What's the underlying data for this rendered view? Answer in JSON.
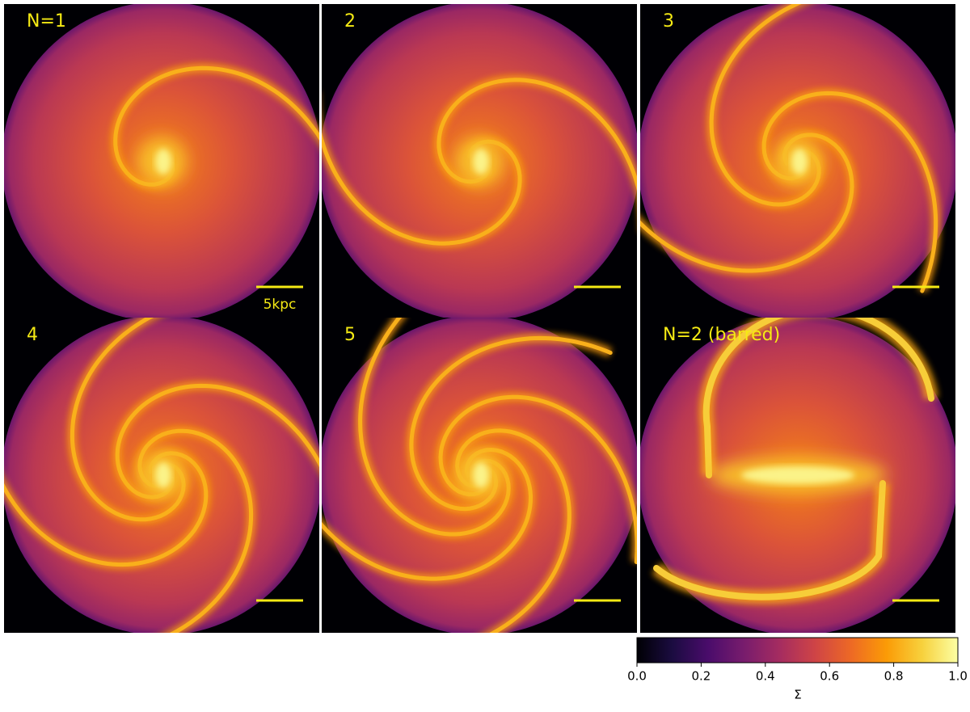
{
  "chart_data": {
    "type": "image-grid",
    "panels": [
      {
        "title": "N=1"
      },
      {
        "title": "2"
      },
      {
        "title": "3"
      },
      {
        "title": "4"
      },
      {
        "title": "5"
      },
      {
        "title": "N=2 (barred)"
      }
    ],
    "scale_bar_label": "5kpc",
    "colormap": [
      "#000004",
      "#1b0c41",
      "#4a0c6b",
      "#781c6d",
      "#a52c60",
      "#cf4446",
      "#ed6925",
      "#fb9b06",
      "#f7d13d",
      "#fcffa4"
    ],
    "zlim": [
      0,
      1
    ],
    "zticks": [
      {
        "value": 0,
        "label": "0.0"
      },
      {
        "value": 0.2,
        "label": "0.2"
      },
      {
        "value": 0.4,
        "label": "0.4"
      },
      {
        "value": 0.6,
        "label": "0.6"
      },
      {
        "value": 0.8,
        "label": "0.8"
      },
      {
        "value": 1,
        "label": "1.0"
      }
    ],
    "zlabel": "Σ"
  }
}
